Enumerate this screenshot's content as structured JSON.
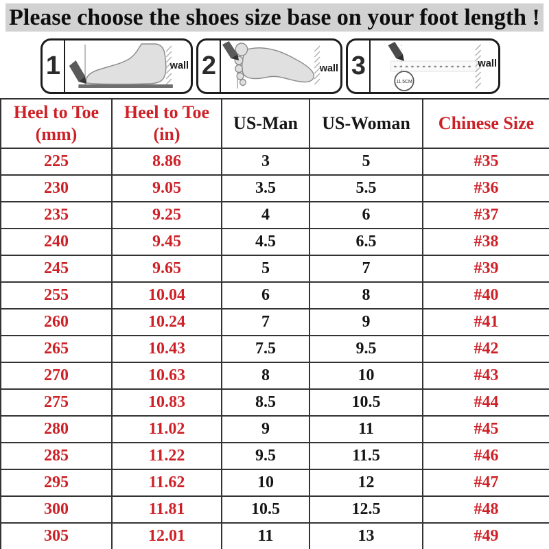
{
  "title": "Please choose the shoes size base on your foot length !",
  "colors": {
    "accent_red": "#cd2127",
    "text_dark": "#161616",
    "banner_bg": "#d2d2d2",
    "table_border": "#333333"
  },
  "steps": [
    {
      "number": "1",
      "wall_label": "wall"
    },
    {
      "number": "2",
      "wall_label": "wall"
    },
    {
      "number": "3",
      "wall_label": "wall",
      "measure_label": "11.5CM"
    }
  ],
  "size_table": {
    "headers": [
      {
        "line1": "Heel to Toe",
        "line2": "(mm)",
        "accent": true
      },
      {
        "line1": "Heel to Toe",
        "line2": "(in)",
        "accent": true
      },
      {
        "line1": "US-Man",
        "line2": "",
        "accent": false
      },
      {
        "line1": "US-Woman",
        "line2": "",
        "accent": false
      },
      {
        "line1": "Chinese Size",
        "line2": "",
        "accent": true
      }
    ],
    "columns": [
      {
        "key": "mm",
        "accent": true
      },
      {
        "key": "in",
        "accent": true
      },
      {
        "key": "us_man",
        "accent": false
      },
      {
        "key": "us_woman",
        "accent": false
      },
      {
        "key": "cn",
        "accent": true
      }
    ],
    "rows": [
      {
        "mm": "225",
        "in": "8.86",
        "us_man": "3",
        "us_woman": "5",
        "cn": "#35"
      },
      {
        "mm": "230",
        "in": "9.05",
        "us_man": "3.5",
        "us_woman": "5.5",
        "cn": "#36"
      },
      {
        "mm": "235",
        "in": "9.25",
        "us_man": "4",
        "us_woman": "6",
        "cn": "#37"
      },
      {
        "mm": "240",
        "in": "9.45",
        "us_man": "4.5",
        "us_woman": "6.5",
        "cn": "#38"
      },
      {
        "mm": "245",
        "in": "9.65",
        "us_man": "5",
        "us_woman": "7",
        "cn": "#39"
      },
      {
        "mm": "255",
        "in": "10.04",
        "us_man": "6",
        "us_woman": "8",
        "cn": "#40"
      },
      {
        "mm": "260",
        "in": "10.24",
        "us_man": "7",
        "us_woman": "9",
        "cn": "#41"
      },
      {
        "mm": "265",
        "in": "10.43",
        "us_man": "7.5",
        "us_woman": "9.5",
        "cn": "#42"
      },
      {
        "mm": "270",
        "in": "10.63",
        "us_man": "8",
        "us_woman": "10",
        "cn": "#43"
      },
      {
        "mm": "275",
        "in": "10.83",
        "us_man": "8.5",
        "us_woman": "10.5",
        "cn": "#44"
      },
      {
        "mm": "280",
        "in": "11.02",
        "us_man": "9",
        "us_woman": "11",
        "cn": "#45"
      },
      {
        "mm": "285",
        "in": "11.22",
        "us_man": "9.5",
        "us_woman": "11.5",
        "cn": "#46"
      },
      {
        "mm": "295",
        "in": "11.62",
        "us_man": "10",
        "us_woman": "12",
        "cn": "#47"
      },
      {
        "mm": "300",
        "in": "11.81",
        "us_man": "10.5",
        "us_woman": "12.5",
        "cn": "#48"
      },
      {
        "mm": "305",
        "in": "12.01",
        "us_man": "11",
        "us_woman": "13",
        "cn": "#49"
      }
    ]
  }
}
